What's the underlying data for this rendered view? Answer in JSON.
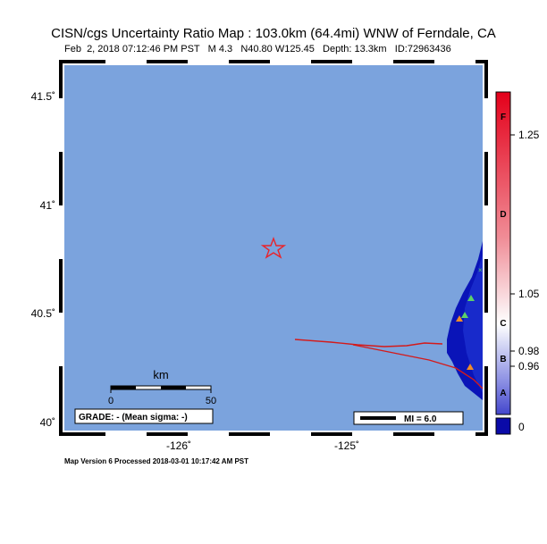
{
  "title": "CISN/cgs Uncertainty Ratio Map : 103.0km (64.4mi) WNW of Ferndale, CA",
  "subtitle": {
    "date": "Feb  2, 2018 07:12:46 PM PST",
    "magnitude": "M 4.3",
    "location": "N40.80 W125.45",
    "depth": "Depth: 13.3km",
    "id": "ID:72963436"
  },
  "map": {
    "lat_labels": [
      "41.5˚",
      "41˚",
      "40.5˚",
      "40˚"
    ],
    "lon_labels": [
      "-126˚",
      "-125˚"
    ],
    "scale_bar": {
      "unit": "km",
      "start": "0",
      "end": "50"
    },
    "grade": "GRADE: - (Mean sigma: -)",
    "mi_legend": "MI = 6.0",
    "colors": {
      "ocean": "#7ba3dd",
      "land": "#0a14b8",
      "fault": "#d41a1a",
      "star": "#e8242c"
    }
  },
  "colorbar": {
    "grades": [
      "F",
      "D",
      "C",
      "B",
      "A"
    ],
    "values": [
      "1.25",
      "1.05",
      "0.98",
      "0.96",
      "0"
    ]
  },
  "footer": "Map Version 6 Processed 2018-03-01 10:17:42 AM PST"
}
